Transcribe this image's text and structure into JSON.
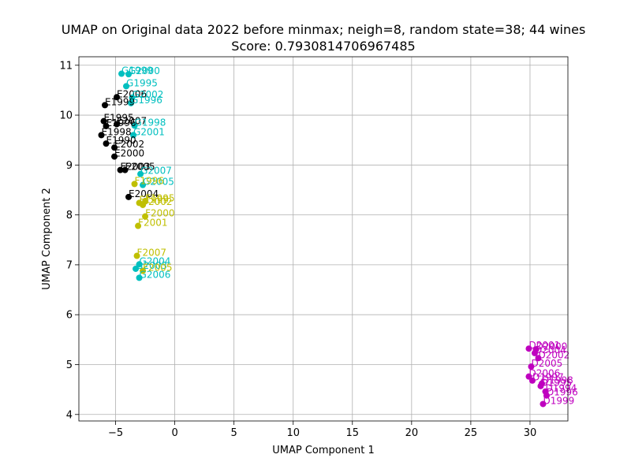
{
  "chart_data": {
    "type": "scatter",
    "title": "UMAP on Original data 2022 before minmax; neigh=8, random state=38; 44 wines",
    "subtitle": "Score: 0.7930814706967485",
    "xlabel": "UMAP Component 1",
    "ylabel": "UMAP Component 2",
    "xlim": [
      -8.1,
      33.2
    ],
    "ylim": [
      3.87,
      11.17
    ],
    "xticks": [
      -5,
      0,
      5,
      10,
      15,
      20,
      25,
      30
    ],
    "yticks": [
      4,
      5,
      6,
      7,
      8,
      9,
      10,
      11
    ],
    "grid": true,
    "colors": {
      "E": "#000000",
      "F": "#bfbf00",
      "G": "#00bfbf",
      "D": "#bf00bf"
    },
    "points": [
      {
        "label": "E1999",
        "x": -5.9,
        "y": 10.2,
        "group": "E"
      },
      {
        "label": "E2006",
        "x": -4.9,
        "y": 10.36,
        "group": "E"
      },
      {
        "label": "E1995",
        "x": -6.0,
        "y": 9.88,
        "group": "E"
      },
      {
        "label": "E1996",
        "x": -5.8,
        "y": 9.78,
        "group": "E"
      },
      {
        "label": "E2007",
        "x": -4.9,
        "y": 9.82,
        "group": "E"
      },
      {
        "label": "E1998",
        "x": -6.2,
        "y": 9.6,
        "group": "E"
      },
      {
        "label": "E1990",
        "x": -5.8,
        "y": 9.43,
        "group": "E"
      },
      {
        "label": "E2002",
        "x": -5.1,
        "y": 9.35,
        "group": "E"
      },
      {
        "label": "E2000",
        "x": -5.1,
        "y": 9.17,
        "group": "E"
      },
      {
        "label": "E2003",
        "x": -4.6,
        "y": 8.9,
        "group": "E"
      },
      {
        "label": "E2005",
        "x": -4.2,
        "y": 8.9,
        "group": "E"
      },
      {
        "label": "E2004",
        "x": -3.9,
        "y": 8.36,
        "group": "E"
      },
      {
        "label": "G1999",
        "x": -4.5,
        "y": 10.83,
        "group": "G"
      },
      {
        "label": "G2000",
        "x": -3.9,
        "y": 10.82,
        "group": "G"
      },
      {
        "label": "G1995",
        "x": -4.1,
        "y": 10.58,
        "group": "G"
      },
      {
        "label": "G2002",
        "x": -3.6,
        "y": 10.35,
        "group": "G"
      },
      {
        "label": "G1996",
        "x": -3.7,
        "y": 10.24,
        "group": "G"
      },
      {
        "label": "G1998",
        "x": -3.4,
        "y": 9.79,
        "group": "G"
      },
      {
        "label": "G2001",
        "x": -3.5,
        "y": 9.6,
        "group": "G"
      },
      {
        "label": "G2007",
        "x": -2.9,
        "y": 8.82,
        "group": "G"
      },
      {
        "label": "G2005",
        "x": -2.7,
        "y": 8.6,
        "group": "G"
      },
      {
        "label": "G2004",
        "x": -3.0,
        "y": 7.01,
        "group": "G"
      },
      {
        "label": "G2003",
        "x": -3.3,
        "y": 6.92,
        "group": "G"
      },
      {
        "label": "G2006",
        "x": -3.0,
        "y": 6.74,
        "group": "G"
      },
      {
        "label": "F1996",
        "x": -3.4,
        "y": 8.62,
        "group": "F"
      },
      {
        "label": "F1995",
        "x": -2.5,
        "y": 8.27,
        "group": "F"
      },
      {
        "label": "F1999",
        "x": -3.0,
        "y": 8.24,
        "group": "F"
      },
      {
        "label": "F2002",
        "x": -2.7,
        "y": 8.2,
        "group": "F"
      },
      {
        "label": "F2000",
        "x": -2.5,
        "y": 7.97,
        "group": "F"
      },
      {
        "label": "F2001",
        "x": -3.1,
        "y": 7.78,
        "group": "F"
      },
      {
        "label": "F2007",
        "x": -3.2,
        "y": 7.18,
        "group": "F"
      },
      {
        "label": "F2005",
        "x": -2.7,
        "y": 6.88,
        "group": "F"
      },
      {
        "label": "D2001",
        "x": 29.9,
        "y": 5.32,
        "group": "D"
      },
      {
        "label": "D2000",
        "x": 30.5,
        "y": 5.3,
        "group": "D"
      },
      {
        "label": "D2004",
        "x": 30.4,
        "y": 5.23,
        "group": "D"
      },
      {
        "label": "D2002",
        "x": 30.7,
        "y": 5.13,
        "group": "D"
      },
      {
        "label": "D2005",
        "x": 30.1,
        "y": 4.96,
        "group": "D"
      },
      {
        "label": "D2006",
        "x": 29.9,
        "y": 4.76,
        "group": "D"
      },
      {
        "label": "D1997",
        "x": 30.2,
        "y": 4.68,
        "group": "D"
      },
      {
        "label": "D1998",
        "x": 31.0,
        "y": 4.62,
        "group": "D"
      },
      {
        "label": "D1995",
        "x": 30.9,
        "y": 4.57,
        "group": "D"
      },
      {
        "label": "D1994",
        "x": 31.3,
        "y": 4.46,
        "group": "D"
      },
      {
        "label": "D1996",
        "x": 31.4,
        "y": 4.38,
        "group": "D"
      },
      {
        "label": "D1999",
        "x": 31.1,
        "y": 4.21,
        "group": "D"
      }
    ]
  }
}
